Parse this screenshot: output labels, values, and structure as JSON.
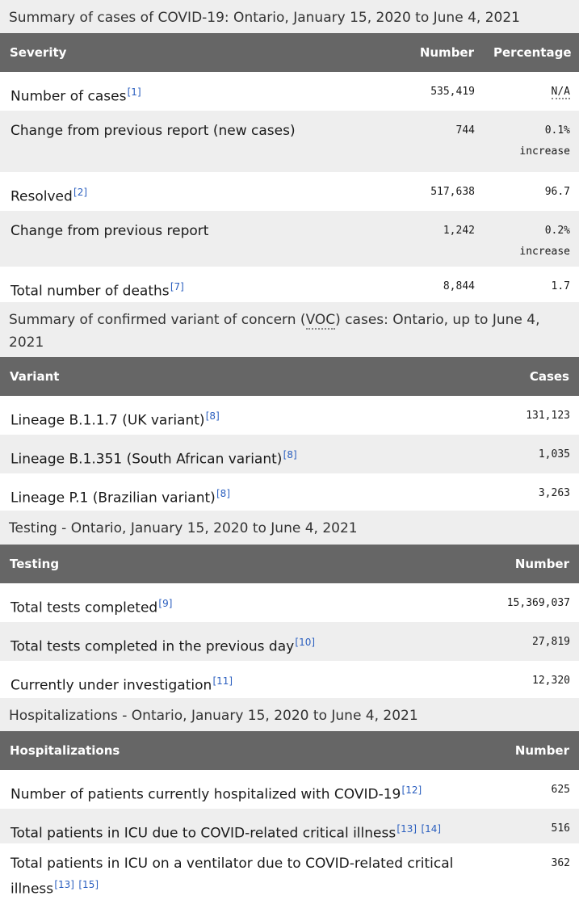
{
  "cases": {
    "caption": "Summary of cases of COVID-19: Ontario, January 15, 2020 to June 4, 2021",
    "headers": [
      "Severity",
      "Number",
      "Percentage"
    ],
    "rows": [
      {
        "label": "Number of cases",
        "refs": [
          "[1]"
        ],
        "number": "535,419",
        "pct": "N/A",
        "pct2": ""
      },
      {
        "label": "Change from previous report (new cases)",
        "refs": [],
        "number": "744",
        "pct": "0.1%",
        "pct2": "increase"
      },
      {
        "label": "Resolved",
        "refs": [
          "[2]"
        ],
        "number": "517,638",
        "pct": "96.7",
        "pct2": ""
      },
      {
        "label": "Change from previous report",
        "refs": [],
        "number": "1,242",
        "pct": "0.2%",
        "pct2": "increase"
      },
      {
        "label": "Total number of deaths",
        "refs": [
          "[7]"
        ],
        "number": "8,844",
        "pct": "1.7",
        "pct2": ""
      }
    ]
  },
  "variants": {
    "caption_pre": "Summary of confirmed variant of concern (",
    "caption_abbr": "VOC",
    "caption_post": ") cases: Ontario, up to June 4, 2021",
    "headers": [
      "Variant",
      "Cases"
    ],
    "rows": [
      {
        "label": "Lineage B.1.1.7 (UK variant)",
        "refs": [
          "[8]"
        ],
        "number": "131,123"
      },
      {
        "label": "Lineage B.1.351 (South African variant)",
        "refs": [
          "[8]"
        ],
        "number": "1,035"
      },
      {
        "label": "Lineage P.1 (Brazilian variant)",
        "refs": [
          "[8]"
        ],
        "number": "3,263"
      }
    ]
  },
  "testing": {
    "caption": "Testing - Ontario, January 15, 2020 to June 4, 2021",
    "headers": [
      "Testing",
      "Number"
    ],
    "rows": [
      {
        "label": "Total tests completed",
        "refs": [
          "[9]"
        ],
        "number": "15,369,037"
      },
      {
        "label": "Total tests completed in the previous day",
        "refs": [
          "[10]"
        ],
        "number": "27,819"
      },
      {
        "label": "Currently under investigation",
        "refs": [
          "[11]"
        ],
        "number": "12,320"
      }
    ]
  },
  "hosp": {
    "caption": "Hospitalizations - Ontario, January 15, 2020 to June 4, 2021",
    "headers": [
      "Hospitalizations",
      "Number"
    ],
    "rows": [
      {
        "label": "Number of patients currently hospitalized with COVID-19",
        "refs": [
          "[12]"
        ],
        "number": "625"
      },
      {
        "label": "Total patients in ICU due to COVID-related critical illness",
        "refs": [
          "[13]",
          "[14]"
        ],
        "number": "516"
      },
      {
        "label": "Total patients in ICU on a ventilator due to COVID-related critical illness",
        "refs": [
          "[13]",
          "[15]"
        ],
        "number": "362"
      }
    ]
  }
}
